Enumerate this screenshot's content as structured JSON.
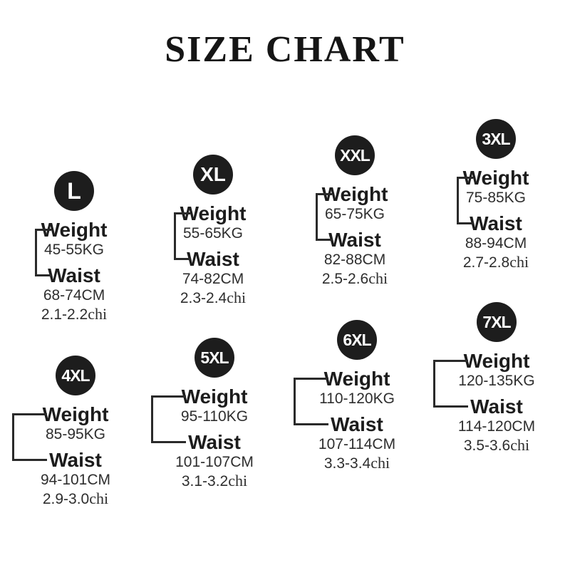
{
  "title": "SIZE CHART",
  "labels": {
    "weight": "Weight",
    "waist": "Waist",
    "chi_unit": "chi"
  },
  "colors": {
    "background": "#ffffff",
    "text": "#1c1c1c",
    "badge": "#1d1d1d",
    "badge_text": "#ffffff"
  },
  "sizes": [
    {
      "label": "L",
      "weight_kg": "45-55KG",
      "waist_cm": "68-74CM",
      "waist_chi": "2.1-2.2"
    },
    {
      "label": "XL",
      "weight_kg": "55-65KG",
      "waist_cm": "74-82CM",
      "waist_chi": "2.3-2.4"
    },
    {
      "label": "XXL",
      "weight_kg": "65-75KG",
      "waist_cm": "82-88CM",
      "waist_chi": "2.5-2.6"
    },
    {
      "label": "3XL",
      "weight_kg": "75-85KG",
      "waist_cm": "88-94CM",
      "waist_chi": "2.7-2.8"
    },
    {
      "label": "4XL",
      "weight_kg": "85-95KG",
      "waist_cm": "94-101CM",
      "waist_chi": "2.9-3.0"
    },
    {
      "label": "5XL",
      "weight_kg": "95-110KG",
      "waist_cm": "101-107CM",
      "waist_chi": "3.1-3.2"
    },
    {
      "label": "6XL",
      "weight_kg": "110-120KG",
      "waist_cm": "107-114CM",
      "waist_chi": "3.3-3.4"
    },
    {
      "label": "7XL",
      "weight_kg": "120-135KG",
      "waist_cm": "114-120CM",
      "waist_chi": "3.5-3.6"
    }
  ]
}
